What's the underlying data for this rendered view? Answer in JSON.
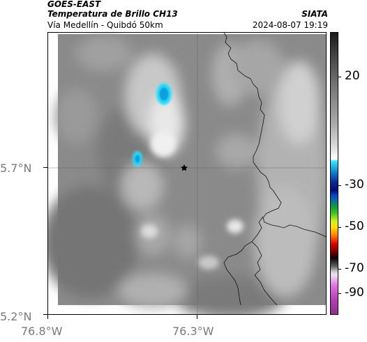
{
  "header": {
    "satellite": "GOES-EAST",
    "product": "Temperatura de Brillo CH13",
    "subtitle": "Vía Medellín - Quibdó 50km",
    "organization": "SIATA",
    "datetime": "2024-08-07 19:19"
  },
  "axes": {
    "lat_labels": [
      "5.7°N",
      "5.2°N"
    ],
    "lon_labels": [
      "76.8°W",
      "76.3°W"
    ]
  },
  "colorbar": {
    "labels": [
      "20",
      "-30",
      "-50",
      "-70",
      "-90"
    ]
  },
  "marker": {
    "icon": "star-icon"
  }
}
